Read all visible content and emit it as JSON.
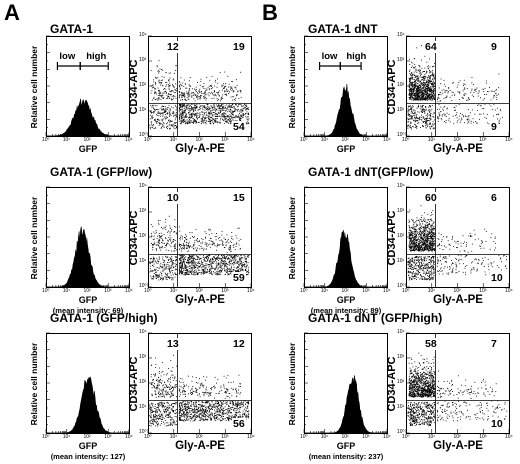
{
  "panel_letters": [
    "A",
    "B"
  ],
  "axis_labels": {
    "hist_y": "Relative cell number",
    "hist_x": "GFP",
    "dot_y": "CD34-APC",
    "dot_x": "Gly-A-PE"
  },
  "gate_labels": {
    "low": "low",
    "high": "high"
  },
  "ticks": {
    "x": [
      "10⁰",
      "10¹",
      "10²",
      "10³",
      "10⁴"
    ],
    "y": [
      "10⁰",
      "10¹",
      "10²",
      "10³",
      "10⁴"
    ]
  },
  "panels": [
    {
      "letter": "A",
      "title": "GATA-1",
      "mean_intensity": "",
      "quadrants": {
        "ul": "12",
        "ur": "19",
        "lr": "54"
      },
      "hist_peak_log": 1.8
    },
    {
      "letter": "A",
      "title": "GATA-1 (GFP/low)",
      "mean_intensity": "(mean intensity: 69)",
      "quadrants": {
        "ul": "10",
        "ur": "15",
        "lr": "59"
      },
      "hist_peak_log": 1.75
    },
    {
      "letter": "A",
      "title": "GATA-1 (GFP/high)",
      "mean_intensity": "(mean intensity: 127)",
      "quadrants": {
        "ul": "13",
        "ur": "12",
        "lr": "56"
      },
      "hist_peak_log": 2.05
    },
    {
      "letter": "B",
      "title": "GATA-1 dNT",
      "mean_intensity": "",
      "quadrants": {
        "ul": "64",
        "ur": "9",
        "lr": "9"
      },
      "hist_peak_log": 2.0
    },
    {
      "letter": "B",
      "title": "GATA-1 dNT(GFP/low)",
      "mean_intensity": "(mean intensity: 89)",
      "quadrants": {
        "ul": "60",
        "ur": "6",
        "lr": "10"
      },
      "hist_peak_log": 1.95
    },
    {
      "letter": "B",
      "title": "GATA-1 dNT (GFP/high)",
      "mean_intensity": "(mean intensity: 237)",
      "quadrants": {
        "ul": "58",
        "ur": "7",
        "lr": "10"
      },
      "hist_peak_log": 2.35
    }
  ]
}
